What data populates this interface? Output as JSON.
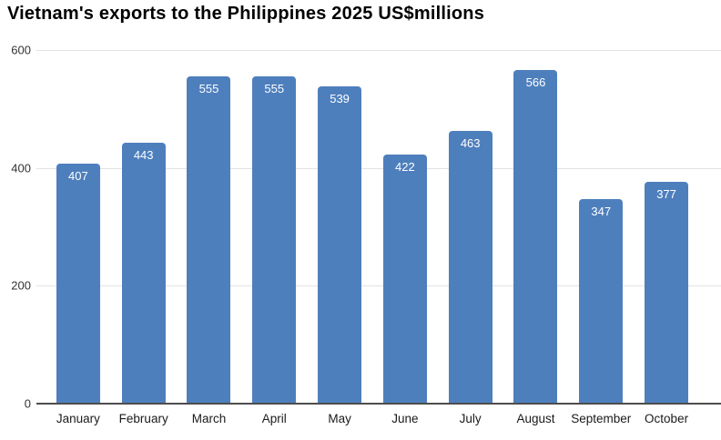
{
  "chart_data": {
    "type": "bar",
    "title": "Vietnam's exports to the Philippines 2025 US$millions",
    "categories": [
      "January",
      "February",
      "March",
      "April",
      "May",
      "June",
      "July",
      "August",
      "September",
      "October"
    ],
    "values": [
      407,
      443,
      555,
      555,
      539,
      422,
      463,
      566,
      347,
      377
    ],
    "xlabel": "",
    "ylabel": "",
    "ylim": [
      0,
      600
    ],
    "yticks": [
      0,
      200,
      400,
      600
    ],
    "grid": true,
    "legend_position": "none",
    "bar_color": "#4e7fbd",
    "value_label_color": "#ffffff",
    "gridline_color": "#e2e2e2",
    "axis_line_color": "#4d4d4d"
  }
}
